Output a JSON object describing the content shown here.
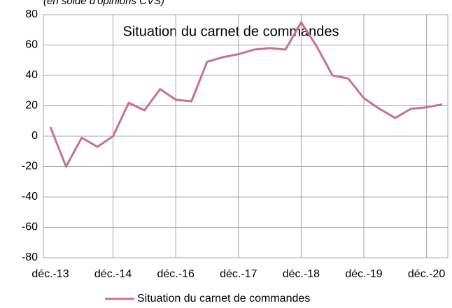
{
  "chart_data": {
    "type": "line",
    "subtitle": "(en solde d'opinions CVS)",
    "title": "Situation du carnet de commandes",
    "categories": [
      "déc.-13",
      null,
      null,
      null,
      "déc.-14",
      null,
      null,
      null,
      "déc.-16",
      null,
      null,
      null,
      "déc.-17",
      null,
      null,
      null,
      "déc.-18",
      null,
      null,
      null,
      "déc.-19",
      null,
      null,
      null,
      "déc.-20",
      null
    ],
    "series": [
      {
        "name": "Situation du carnet de commandes",
        "color": "#c9718f",
        "values": [
          6,
          -20,
          -1,
          -7,
          0,
          22,
          17,
          31,
          24,
          23,
          49,
          52,
          54,
          57,
          58,
          57,
          75,
          59,
          40,
          38,
          25,
          18,
          12,
          18,
          19,
          21
        ]
      }
    ],
    "ylim": [
      -80,
      80
    ],
    "yticks": [
      -80,
      -60,
      -40,
      -20,
      0,
      20,
      40,
      60,
      80
    ],
    "grid": true,
    "legend": "bottom"
  }
}
